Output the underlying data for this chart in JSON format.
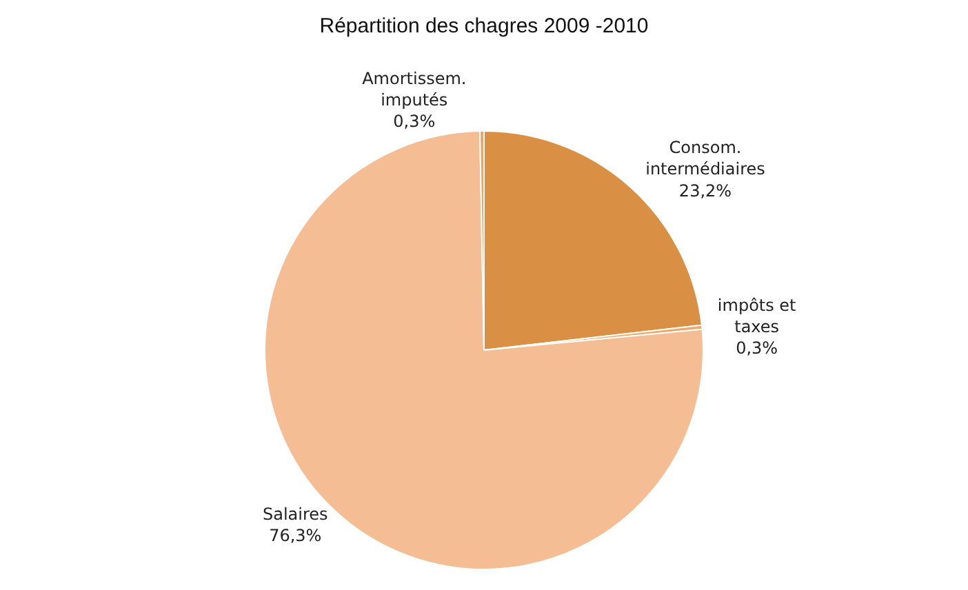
{
  "chart_data": {
    "type": "pie",
    "title": "Répartition des chagres 2009 -2010",
    "categories": [
      "Consom.\nintermédiaires",
      "impôts et\ntaxes",
      "Salaires",
      "Amortissem.\nimputés"
    ],
    "values": [
      23.2,
      0.3,
      76.3,
      0.3
    ],
    "value_labels": [
      "23,2%",
      "0,3%",
      "76,3%",
      "0,3%"
    ],
    "colors": [
      "#d98f44",
      "#f0a868",
      "#f5bd94",
      "#e9a46a"
    ],
    "legend": false
  }
}
